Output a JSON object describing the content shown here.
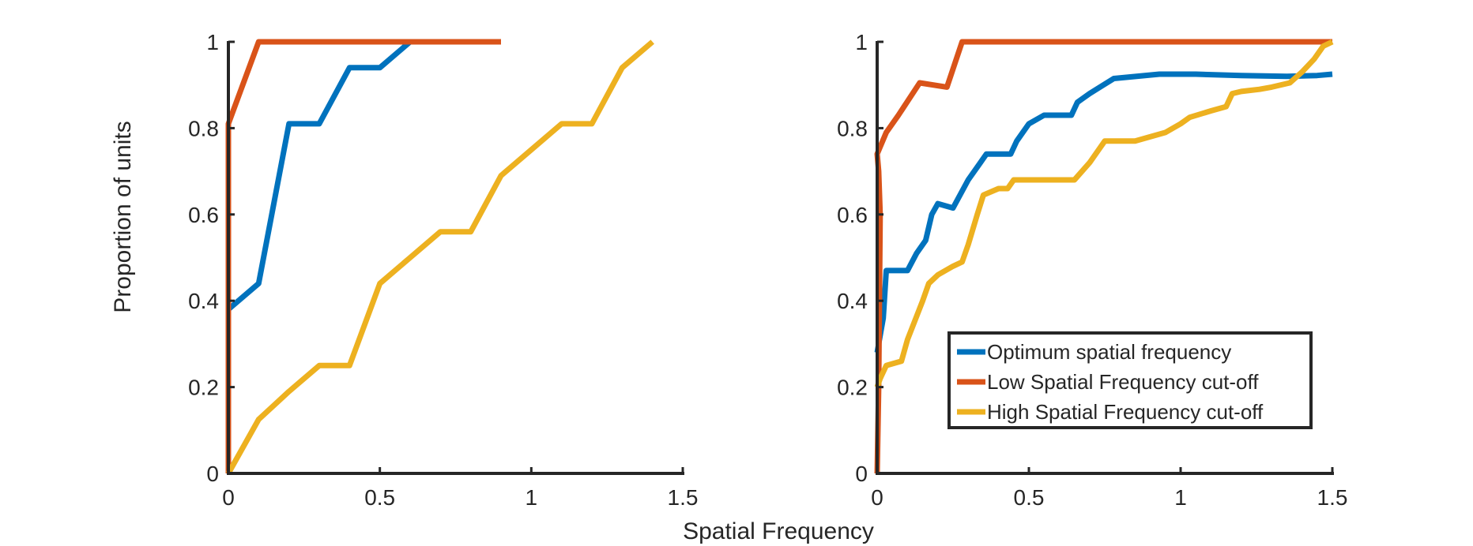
{
  "figure": {
    "ylabel": "Proportion of units",
    "xlabel": "Spatial Frequency"
  },
  "colors": {
    "optimum": "#0072BD",
    "low_cutoff": "#D95319",
    "high_cutoff": "#EDB120",
    "axis": "#262626"
  },
  "chart_data": [
    {
      "type": "line",
      "xlim": [
        0,
        1.5
      ],
      "ylim": [
        0,
        1
      ],
      "xticks": [
        0,
        0.5,
        1,
        1.5
      ],
      "xtick_labels": [
        "0",
        "0.5",
        "1",
        "1.5"
      ],
      "yticks": [
        0,
        0.2,
        0.4,
        0.6,
        0.8,
        1
      ],
      "ytick_labels": [
        "0",
        "0.2",
        "0.4",
        "0.6",
        "0.8",
        "1"
      ],
      "series": [
        {
          "key": "optimum",
          "x": [
            0,
            0.1,
            0.2,
            0.3,
            0.4,
            0.5,
            0.6
          ],
          "y": [
            0.38,
            0.44,
            0.81,
            0.81,
            0.94,
            0.94,
            1.0
          ]
        },
        {
          "key": "low_cutoff",
          "x": [
            0,
            0,
            0.1,
            0.2,
            0.3,
            0.4,
            0.5,
            0.6,
            0.7,
            0.8,
            0.9
          ],
          "y": [
            0,
            0.81,
            1.0,
            1.0,
            1.0,
            1.0,
            1.0,
            1.0,
            1.0,
            1.0,
            1.0
          ]
        },
        {
          "key": "high_cutoff",
          "x": [
            0,
            0.1,
            0.2,
            0.3,
            0.4,
            0.5,
            0.6,
            0.7,
            0.8,
            0.9,
            1.0,
            1.1,
            1.2,
            1.3,
            1.4
          ],
          "y": [
            0,
            0.125,
            0.19,
            0.25,
            0.25,
            0.44,
            0.5,
            0.56,
            0.56,
            0.69,
            0.75,
            0.81,
            0.81,
            0.94,
            1.0
          ]
        }
      ]
    },
    {
      "type": "line",
      "xlim": [
        0,
        1.5
      ],
      "ylim": [
        0,
        1
      ],
      "xticks": [
        0,
        0.5,
        1,
        1.5
      ],
      "xtick_labels": [
        "0",
        "0.5",
        "1",
        "1.5"
      ],
      "yticks": [
        0,
        0.2,
        0.4,
        0.6,
        0.8,
        1
      ],
      "ytick_labels": [
        "0",
        "0.2",
        "0.4",
        "0.6",
        "0.8",
        "1"
      ],
      "legend": {
        "placement": "bottom-right",
        "entries": [
          {
            "key": "optimum",
            "label": "Optimum spatial frequency"
          },
          {
            "key": "low_cutoff",
            "label": "Low Spatial Frequency cut-off"
          },
          {
            "key": "high_cutoff",
            "label": "High Spatial Frequency cut-off"
          }
        ]
      },
      "series": [
        {
          "key": "optimum",
          "name": "Optimum spatial frequency",
          "x": [
            0,
            0.02,
            0.03,
            0.1,
            0.13,
            0.16,
            0.18,
            0.2,
            0.25,
            0.3,
            0.34,
            0.36,
            0.44,
            0.46,
            0.5,
            0.55,
            0.6,
            0.64,
            0.66,
            0.7,
            0.78,
            0.93,
            1.05,
            1.2,
            1.35,
            1.45,
            1.5
          ],
          "y": [
            0.28,
            0.36,
            0.47,
            0.47,
            0.51,
            0.54,
            0.6,
            0.625,
            0.615,
            0.68,
            0.72,
            0.74,
            0.74,
            0.77,
            0.81,
            0.83,
            0.83,
            0.83,
            0.86,
            0.88,
            0.915,
            0.925,
            0.925,
            0.922,
            0.92,
            0.922,
            0.925
          ]
        },
        {
          "key": "low_cutoff",
          "name": "Low Spatial Frequency cut-off",
          "x": [
            0,
            0.005,
            0.01,
            0.005,
            0.0,
            0.03,
            0.07,
            0.14,
            0.23,
            0.28,
            0.4,
            0.6,
            0.8,
            1.0,
            1.2,
            1.4,
            1.5
          ],
          "y": [
            0,
            0.2,
            0.6,
            0.7,
            0.74,
            0.79,
            0.83,
            0.905,
            0.895,
            1.0,
            1.0,
            1.0,
            1.0,
            1.0,
            1.0,
            1.0,
            1.0
          ]
        },
        {
          "key": "high_cutoff",
          "name": "High Spatial Frequency cut-off",
          "x": [
            0,
            0.01,
            0.03,
            0.08,
            0.1,
            0.15,
            0.17,
            0.2,
            0.25,
            0.28,
            0.3,
            0.33,
            0.35,
            0.4,
            0.43,
            0.45,
            0.6,
            0.65,
            0.7,
            0.75,
            0.85,
            0.95,
            1.0,
            1.03,
            1.1,
            1.15,
            1.17,
            1.2,
            1.26,
            1.3,
            1.36,
            1.4,
            1.44,
            1.47,
            1.5
          ],
          "y": [
            0.2,
            0.22,
            0.25,
            0.26,
            0.31,
            0.4,
            0.44,
            0.46,
            0.48,
            0.49,
            0.53,
            0.6,
            0.645,
            0.66,
            0.66,
            0.68,
            0.68,
            0.68,
            0.72,
            0.77,
            0.77,
            0.79,
            0.81,
            0.825,
            0.84,
            0.85,
            0.88,
            0.885,
            0.89,
            0.895,
            0.905,
            0.93,
            0.96,
            0.99,
            1.0
          ]
        }
      ]
    }
  ]
}
